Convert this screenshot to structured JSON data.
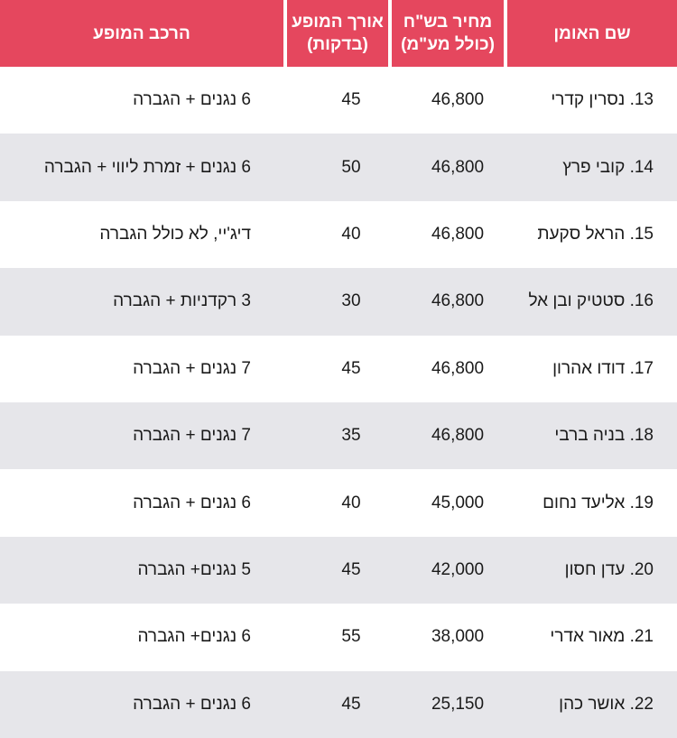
{
  "header": {
    "artist_name": "שם האומן",
    "price_line1": "מחיר בש\"ח",
    "price_line2": "(כולל מע\"מ)",
    "length_line1": "אורך המופע",
    "length_line2": "(בדקות)",
    "setup": "הרכב המופע"
  },
  "colors": {
    "header_bg": "#e5475e",
    "header_text": "#ffffff",
    "stripe": "#e6e6ea"
  },
  "rows": [
    {
      "num": "13.",
      "name": "נסרין קדרי",
      "price": "46,800",
      "length": "45",
      "setup": "6 נגנים + הגברה"
    },
    {
      "num": "14.",
      "name": "קובי פרץ",
      "price": "46,800",
      "length": "50",
      "setup": "6 נגנים + זמרת ליווי + הגברה"
    },
    {
      "num": "15.",
      "name": "הראל סקעת",
      "price": "46,800",
      "length": "40",
      "setup": "דיג'יי, לא כולל הגברה"
    },
    {
      "num": "16.",
      "name": "סטטיק ובן אל",
      "price": "46,800",
      "length": "30",
      "setup": "3 רקדניות + הגברה"
    },
    {
      "num": "17.",
      "name": "דודו אהרון",
      "price": "46,800",
      "length": "45",
      "setup": "7 נגנים + הגברה"
    },
    {
      "num": "18.",
      "name": "בניה ברבי",
      "price": "46,800",
      "length": "35",
      "setup": "7 נגנים + הגברה"
    },
    {
      "num": "19.",
      "name": "אליעד נחום",
      "price": "45,000",
      "length": "40",
      "setup": "6 נגנים + הגברה"
    },
    {
      "num": "20.",
      "name": "עדן חסון",
      "price": "42,000",
      "length": "45",
      "setup": "5 נגנים+ הגברה"
    },
    {
      "num": "21.",
      "name": "מאור אדרי",
      "price": "38,000",
      "length": "55",
      "setup": "6 נגנים+ הגברה"
    },
    {
      "num": "22.",
      "name": "אושר כהן",
      "price": "25,150",
      "length": "45",
      "setup": "6 נגנים + הגברה"
    }
  ]
}
